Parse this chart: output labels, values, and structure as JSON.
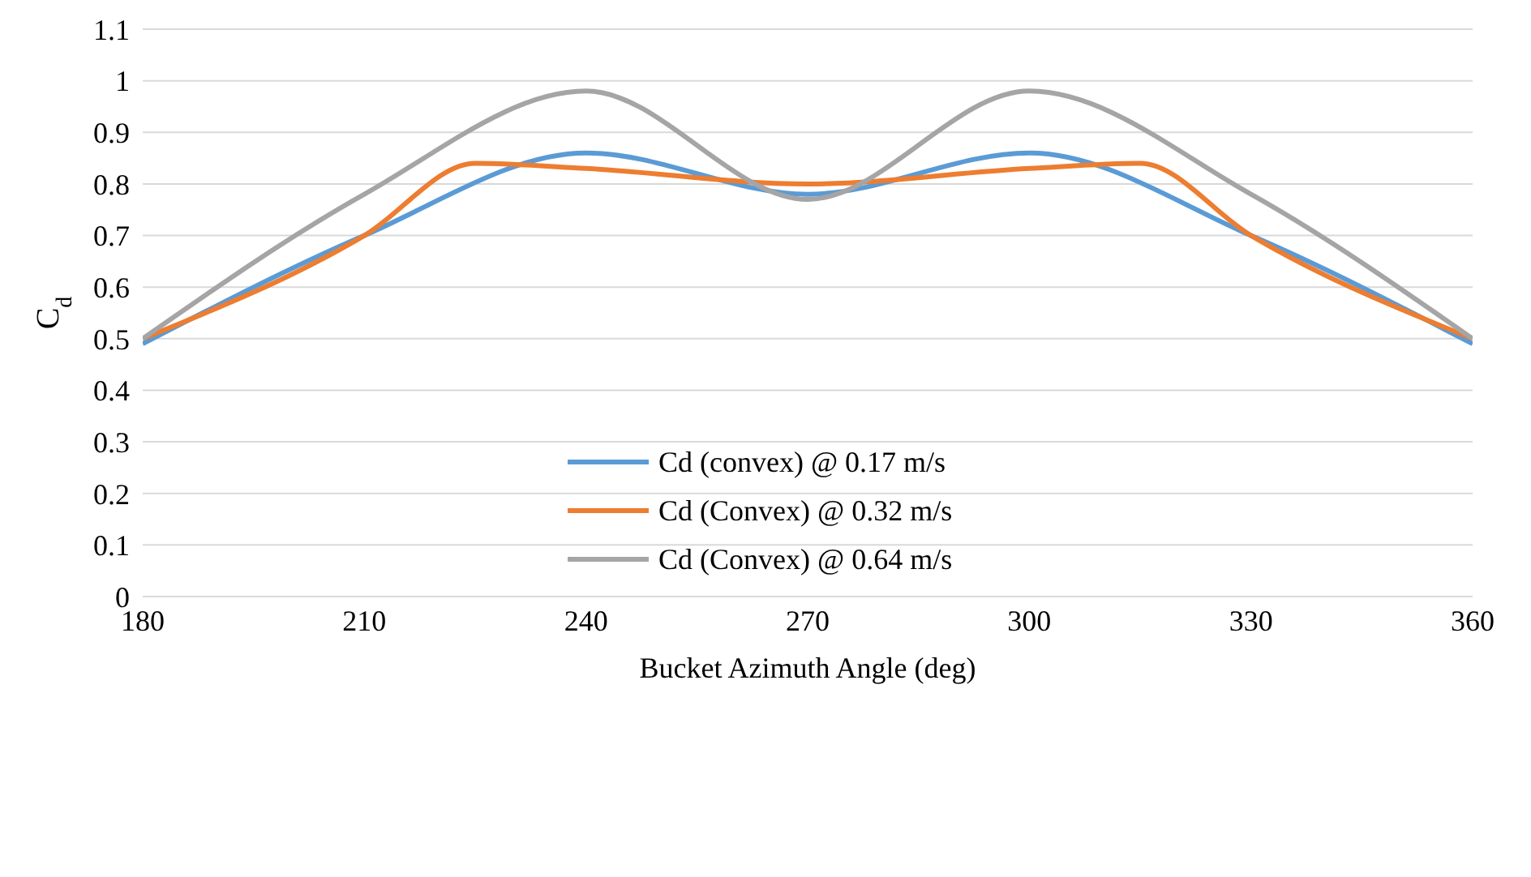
{
  "chart_data": {
    "type": "line",
    "xlabel": "Bucket Azimuth Angle (deg)",
    "ylabel": "C$_{d}$",
    "xlim": [
      180,
      360
    ],
    "xticks": [
      180,
      210,
      240,
      270,
      300,
      330,
      360
    ],
    "ylim": [
      0,
      1.1
    ],
    "yticks": [
      0,
      0.1,
      0.2,
      0.3,
      0.4,
      0.5,
      0.6,
      0.7,
      0.8,
      0.9,
      1,
      1.1
    ],
    "grid": "y",
    "legend": "center",
    "marker": "none",
    "line_style": "solid",
    "series": [
      {
        "name": "Cd (convex)  @ 0.17 m/s",
        "color": "#5b9bd5",
        "x": [
          180,
          210,
          240,
          270,
          300,
          330,
          360
        ],
        "values": [
          0.49,
          0.7,
          0.86,
          0.78,
          0.86,
          0.7,
          0.49
        ]
      },
      {
        "name": "Cd (Convex) @ 0.32 m/s",
        "color": "#ed7d31",
        "x": [
          180,
          210,
          225,
          240,
          270,
          300,
          315,
          330,
          360
        ],
        "values": [
          0.5,
          0.7,
          0.84,
          0.83,
          0.8,
          0.83,
          0.84,
          0.7,
          0.5
        ]
      },
      {
        "name": "Cd (Convex) @ 0.64 m/s",
        "color": "#a5a5a5",
        "x": [
          180,
          210,
          240,
          270,
          300,
          330,
          360
        ],
        "values": [
          0.5,
          0.78,
          0.98,
          0.77,
          0.98,
          0.78,
          0.5
        ]
      }
    ]
  }
}
